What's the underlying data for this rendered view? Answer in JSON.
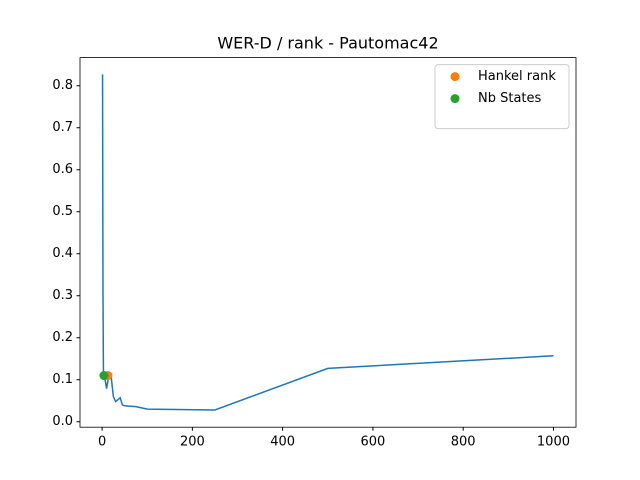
{
  "chart_data": {
    "type": "line",
    "title": "WER-D / rank - Pautomac42",
    "series": [
      {
        "color": "#1f77b4",
        "x": [
          1,
          2,
          3,
          5,
          10,
          15,
          20,
          25,
          30,
          40,
          45,
          50,
          75,
          100,
          250,
          500,
          1000
        ],
        "values": [
          0.827,
          0.3,
          0.11,
          0.11,
          0.079,
          0.11,
          0.108,
          0.06,
          0.048,
          0.057,
          0.04,
          0.038,
          0.036,
          0.03,
          0.028,
          0.127,
          0.157
        ]
      }
    ],
    "markers": [
      {
        "name": "Hankel rank",
        "color": "#ff7f0e",
        "x": 13,
        "y": 0.11
      },
      {
        "name": "Nb States",
        "color": "#2ca02c",
        "x": 4,
        "y": 0.11
      }
    ],
    "xlim": [
      -48.95,
      1049.95
    ],
    "xticks": [
      0,
      200,
      400,
      600,
      800,
      1000
    ],
    "ylim": [
      -0.013,
      0.867
    ],
    "yticks": [
      {
        "value": 0,
        "label": "0.0"
      },
      0.1,
      0.2,
      0.3,
      0.4,
      0.5,
      0.6,
      0.7,
      0.8
    ],
    "grid": false,
    "legend": "upper right"
  }
}
